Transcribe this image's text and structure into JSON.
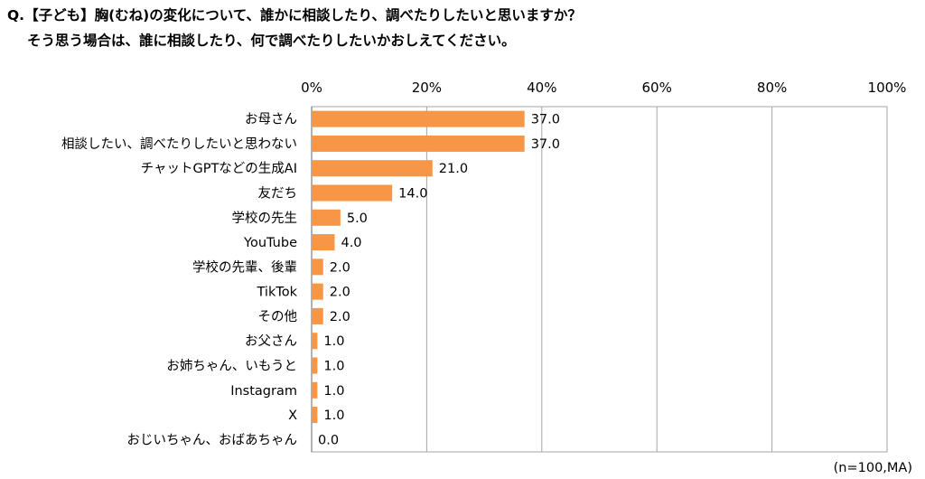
{
  "header": {
    "question_line1": "Q.【子ども】胸(むね)の変化について、誰かに相談したり、調べたりしたいと思いますか？",
    "question_line2": "そう思う場合は、誰に相談したり、何で調べたりしたいかおしえてください。"
  },
  "footnote": "(n=100,MA)",
  "colors": {
    "bar": "#F79646",
    "bar_edge": "#E07C2C",
    "grid": "#A6A6A6"
  },
  "chart_data": {
    "type": "bar",
    "orientation": "horizontal",
    "title": "",
    "categories": [
      "お母さん",
      "相談したい、調べたりしたいと思わない",
      "チャットGPTなどの生成AI",
      "友だち",
      "学校の先生",
      "YouTube",
      "学校の先輩、後輩",
      "TikTok",
      "その他",
      "お父さん",
      "お姉ちゃん、いもうと",
      "Instagram",
      "X",
      "おじいちゃん、おばあちゃん"
    ],
    "values": [
      37.0,
      37.0,
      21.0,
      14.0,
      5.0,
      4.0,
      2.0,
      2.0,
      2.0,
      1.0,
      1.0,
      1.0,
      1.0,
      0.0
    ],
    "value_labels": [
      "37.0",
      "37.0",
      "21.0",
      "14.0",
      "5.0",
      "4.0",
      "2.0",
      "2.0",
      "2.0",
      "1.0",
      "1.0",
      "1.0",
      "1.0",
      "0.0"
    ],
    "xlim": [
      0,
      100
    ],
    "xticks": [
      0,
      20,
      40,
      60,
      80,
      100
    ],
    "xtick_labels": [
      "0%",
      "20%",
      "40%",
      "60%",
      "80%",
      "100%"
    ],
    "axis_position": "top",
    "grid": true,
    "xlabel": "",
    "ylabel": ""
  }
}
